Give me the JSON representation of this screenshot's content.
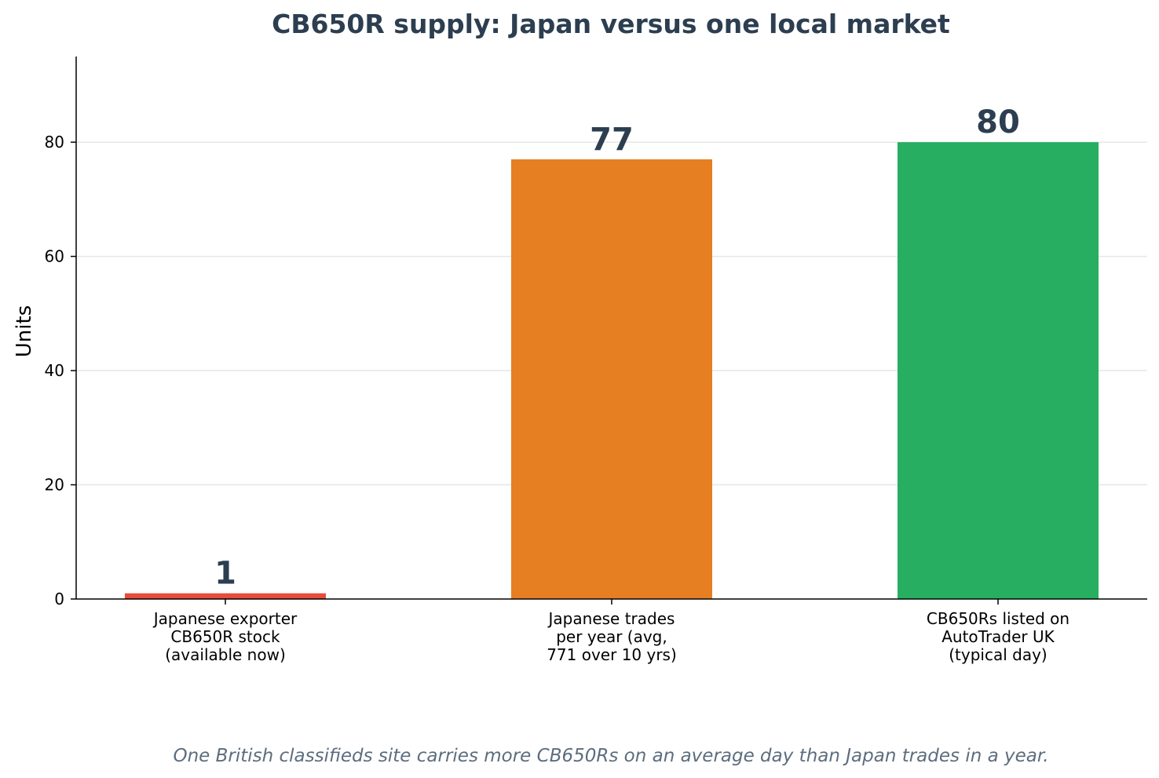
{
  "chart_data": {
    "type": "bar",
    "title": "CB650R supply: Japan versus one local market",
    "xlabel": "",
    "ylabel": "Units",
    "ylim": [
      0,
      95
    ],
    "yticks": [
      0,
      20,
      40,
      60,
      80
    ],
    "grid": "horizontal",
    "categories": [
      [
        "Japanese exporter",
        "CB650R stock",
        "(available now)"
      ],
      [
        "Japanese trades",
        "per year (avg,",
        "771 over 10 yrs)"
      ],
      [
        "CB650Rs listed on",
        "AutoTrader UK",
        "(typical day)"
      ]
    ],
    "values": [
      1,
      77,
      80
    ],
    "value_labels": [
      "1",
      "77",
      "80"
    ],
    "colors": [
      "#e74c3c",
      "#e67e22",
      "#27ae60"
    ],
    "caption": "One British classifieds site carries more CB650Rs on an average day than Japan trades in a year."
  }
}
